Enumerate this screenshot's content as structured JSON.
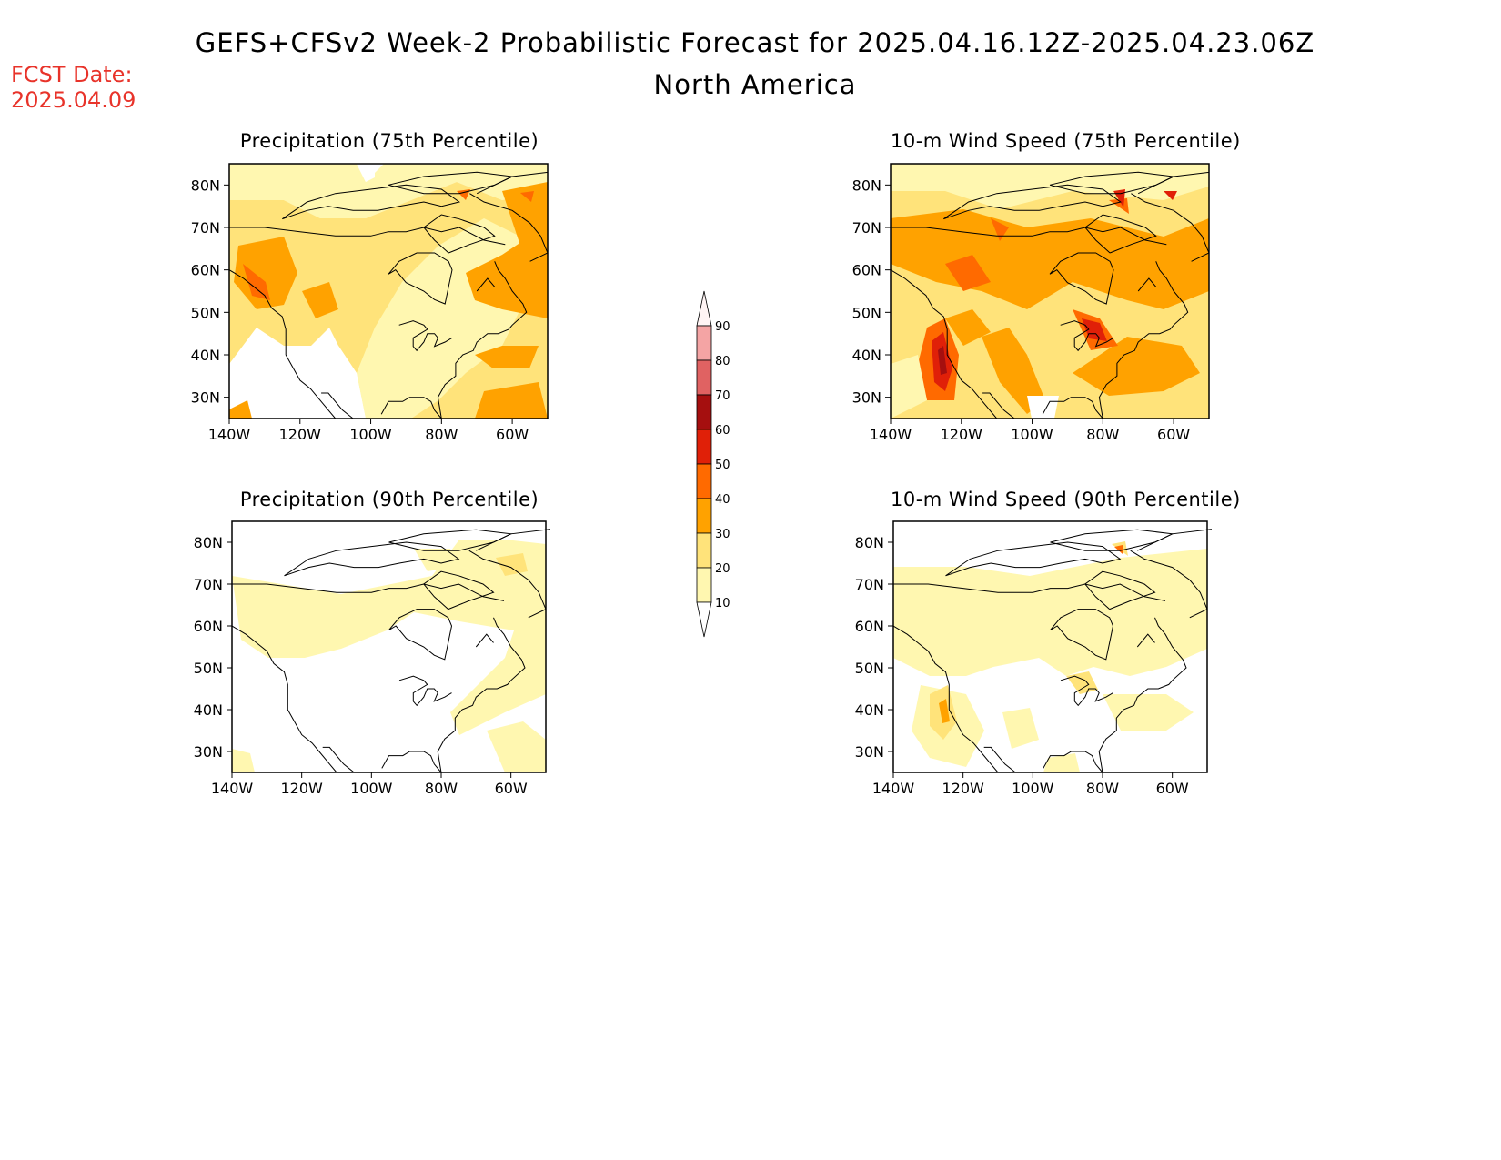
{
  "title": "GEFS+CFSv2 Week-2 Probabilistic Forecast for 2025.04.16.12Z-2025.04.23.06Z",
  "subtitle": "North America",
  "forecast_date": {
    "label": "FCST Date:",
    "value": "2025.04.09"
  },
  "panels": [
    {
      "title": "Precipitation (75th Percentile)",
      "variable": "precipitation",
      "percentile": 75,
      "dominant_category": "20-30",
      "max_category": "40-50"
    },
    {
      "title": "10-m Wind Speed (75th Percentile)",
      "variable": "wind_speed",
      "percentile": 75,
      "dominant_category": "30-40",
      "max_category": "60-70"
    },
    {
      "title": "Precipitation (90th Percentile)",
      "variable": "precipitation",
      "percentile": 90,
      "dominant_category": "0-10",
      "max_category": "20-30"
    },
    {
      "title": "10-m Wind Speed (90th Percentile)",
      "variable": "wind_speed",
      "percentile": 90,
      "dominant_category": "10-20",
      "max_category": "40-50"
    }
  ],
  "axes": {
    "lat_labels": [
      "80N",
      "70N",
      "60N",
      "50N",
      "40N",
      "30N"
    ],
    "lon_labels": [
      "140W",
      "120W",
      "100W",
      "80W",
      "60W"
    ],
    "lat_range": [
      25,
      85
    ],
    "lon_range": [
      -140,
      -50
    ]
  },
  "colorbar": {
    "labels": [
      "90",
      "80",
      "70",
      "60",
      "50",
      "40",
      "30",
      "20",
      "10"
    ],
    "colors": [
      "#fff4f4",
      "#f4a4a4",
      "#e06262",
      "#a50f0f",
      "#e02008",
      "#ff6a00",
      "#ffa200",
      "#ffe37a",
      "#fff7b0"
    ]
  },
  "palette": {
    "c10": "#fff7b0",
    "c20": "#ffe37a",
    "c30": "#ffa200",
    "c40": "#ff6a00",
    "c50": "#e02008",
    "c60": "#a50f0f",
    "forecast_date_color": "#e8332a"
  }
}
